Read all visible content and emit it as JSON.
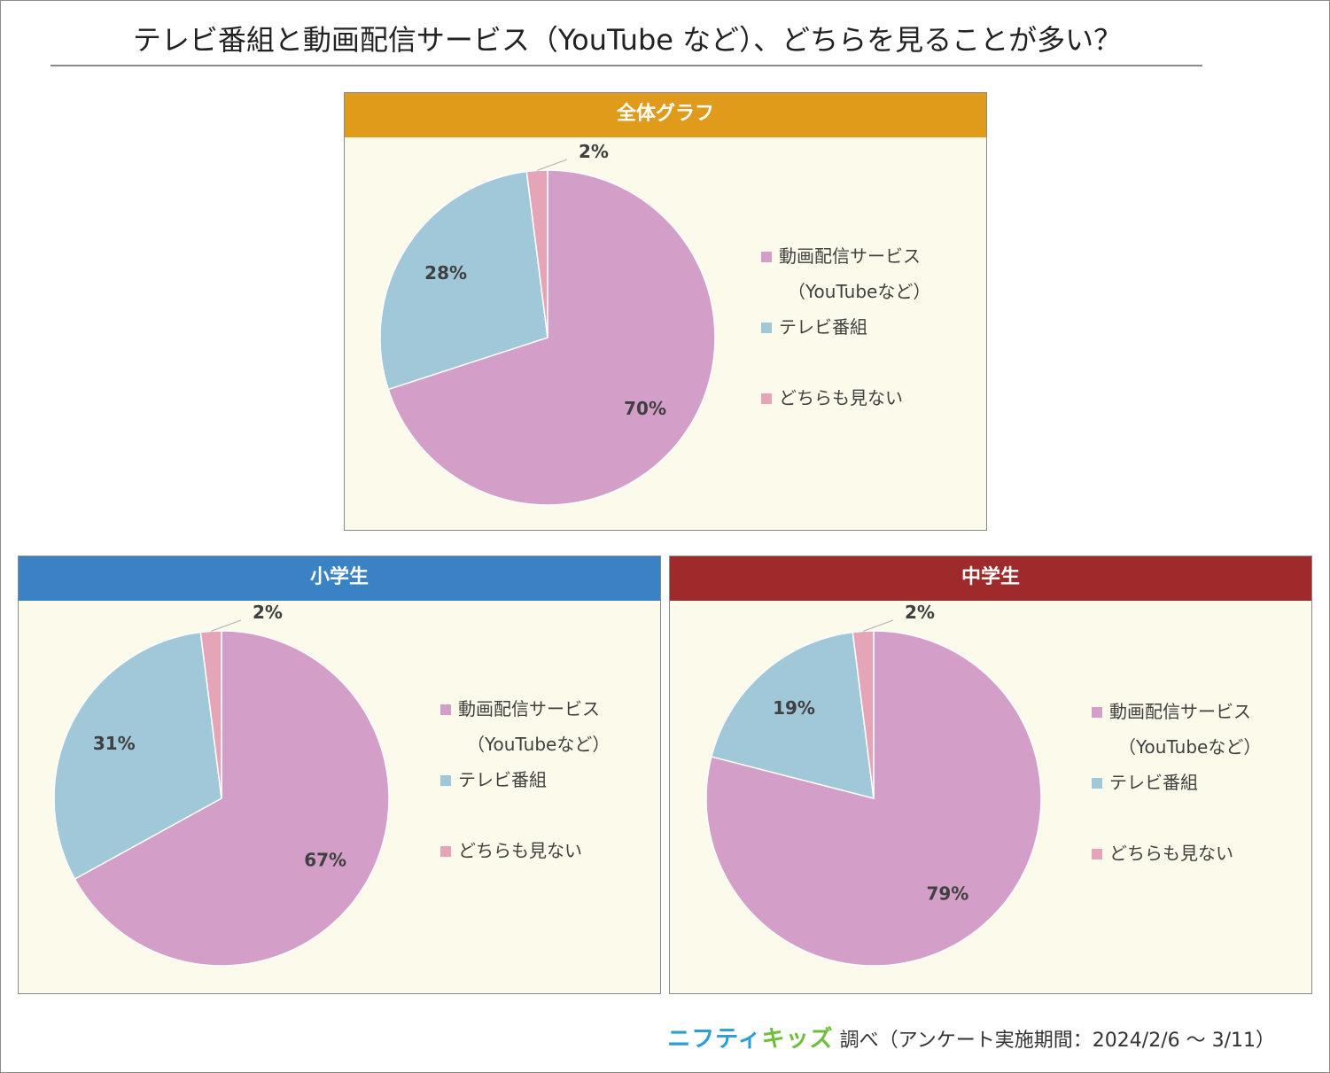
{
  "page": {
    "title": "テレビ番組と動画配信サービス（YouTube など）、どちらを見ることが多い？",
    "footer": {
      "logo_part1": "ニフティ",
      "logo_part2": "キッズ",
      "text": "調べ（アンケート実施期間：2024/2/6 ～ 3/11）"
    }
  },
  "colors": {
    "video": "#d39ec7",
    "tv": "#a0c8d8",
    "neither": "#e6a4b8",
    "header_all": "#e09b1b",
    "header_elem": "#3b82c4",
    "header_junior": "#9e2a2b"
  },
  "chart_data": [
    {
      "type": "pie",
      "title": "全体グラフ",
      "series": [
        {
          "name": "動画配信サービス（YouTubeなど）",
          "value": 70,
          "label": "70%"
        },
        {
          "name": "テレビ番組",
          "value": 28,
          "label": "28%"
        },
        {
          "name": "どちらも見ない",
          "value": 2,
          "label": "2%"
        }
      ],
      "legend": {
        "item1_line1": "動画配信サービス",
        "item1_line2": "（YouTubeなど）",
        "item2": "テレビ番組",
        "item3": "どちらも見ない",
        "position": "right"
      }
    },
    {
      "type": "pie",
      "title": "小学生",
      "series": [
        {
          "name": "動画配信サービス（YouTubeなど）",
          "value": 67,
          "label": "67%"
        },
        {
          "name": "テレビ番組",
          "value": 31,
          "label": "31%"
        },
        {
          "name": "どちらも見ない",
          "value": 2,
          "label": "2%"
        }
      ],
      "legend": {
        "item1_line1": "動画配信サービス",
        "item1_line2": "（YouTubeなど）",
        "item2": "テレビ番組",
        "item3": "どちらも見ない",
        "position": "right"
      }
    },
    {
      "type": "pie",
      "title": "中学生",
      "series": [
        {
          "name": "動画配信サービス（YouTubeなど）",
          "value": 79,
          "label": "79%"
        },
        {
          "name": "テレビ番組",
          "value": 19,
          "label": "19%"
        },
        {
          "name": "どちらも見ない",
          "value": 2,
          "label": "2%"
        }
      ],
      "legend": {
        "item1_line1": "動画配信サービス",
        "item1_line2": "（YouTubeなど）",
        "item2": "テレビ番組",
        "item3": "どちらも見ない",
        "position": "right"
      }
    }
  ]
}
